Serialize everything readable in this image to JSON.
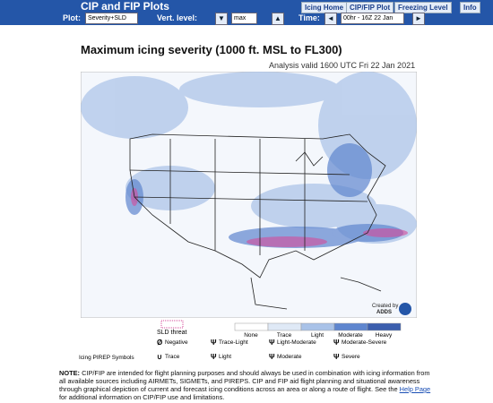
{
  "header": {
    "title": "CIP and FIP Plots",
    "nav": [
      "Icing Home",
      "CIP/FIP Plot",
      "Freezing Level",
      "Info"
    ]
  },
  "controls": {
    "plot_label": "Plot:",
    "plot_value": "Severity+SLD",
    "level_label": "Vert. level:",
    "level_value": "max",
    "time_label": "Time:",
    "time_value": "00hr - 16Z 22 Jan"
  },
  "map": {
    "title": "Maximum icing severity (1000 ft. MSL to FL300)",
    "subtitle": "Analysis valid 1600 UTC Fri 22 Jan 2021",
    "credit": "Created by",
    "credit_org": "ADDS"
  },
  "legend": {
    "sld": "SLD threat",
    "scale": [
      "None",
      "Trace",
      "Light",
      "Moderate",
      "Heavy"
    ],
    "pirep_title": "Icing PIREP Symbols",
    "pirep": [
      "Negative",
      "Trace",
      "Trace-Light",
      "Light",
      "Light-Moderate",
      "Moderate",
      "Moderate-Severe",
      "Severe"
    ]
  },
  "note": {
    "label": "NOTE:",
    "text_before": "CIP/FIP are intended for flight planning purposes and should always be used in combination with icing information from all available sources including AIRMETs, SIGMETs, and PIREPS. CIP and FIP aid flight planning and situational awareness through graphical depiction of current and forecast icing conditions across an area or along a route of flight. See the",
    "link": "Help Page",
    "text_after": "for additional information on CIP/FIP use and limitations."
  }
}
